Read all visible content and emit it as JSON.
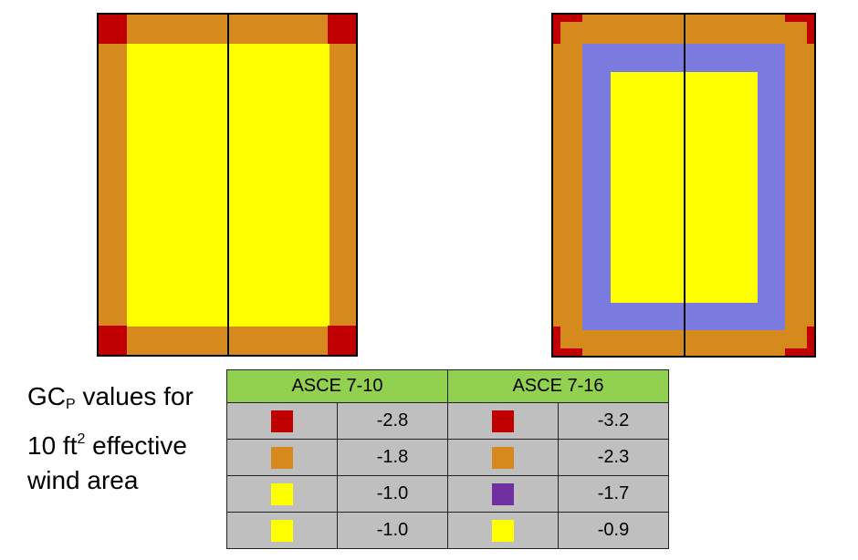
{
  "colors": {
    "red": "#c00000",
    "orange": "#d68a1e",
    "yellow": "#ffff00",
    "blue": "#7b7bdf",
    "purple": "#7030a0",
    "header_green": "#92d050",
    "cell_gray": "#bfbfbf"
  },
  "caption": {
    "line1_main": "GC",
    "line1_sub": "P",
    "line1_rest": " values for",
    "line2_main": "10 ft",
    "line2_sup": "2",
    "line2_rest": " effective",
    "line3": "wind area"
  },
  "table": {
    "headers": [
      "ASCE 7-10",
      "ASCE 7-16"
    ],
    "rows": [
      {
        "sw1": "red",
        "v1": "-2.8",
        "sw2": "red",
        "v2": "-3.2"
      },
      {
        "sw1": "orange",
        "v1": "-1.8",
        "sw2": "orange",
        "v2": "-2.3"
      },
      {
        "sw1": "yellow",
        "v1": "-1.0",
        "sw2": "purple",
        "v2": "-1.7"
      },
      {
        "sw1": "yellow",
        "v1": "-1.0",
        "sw2": "yellow",
        "v2": "-0.9"
      }
    ]
  }
}
